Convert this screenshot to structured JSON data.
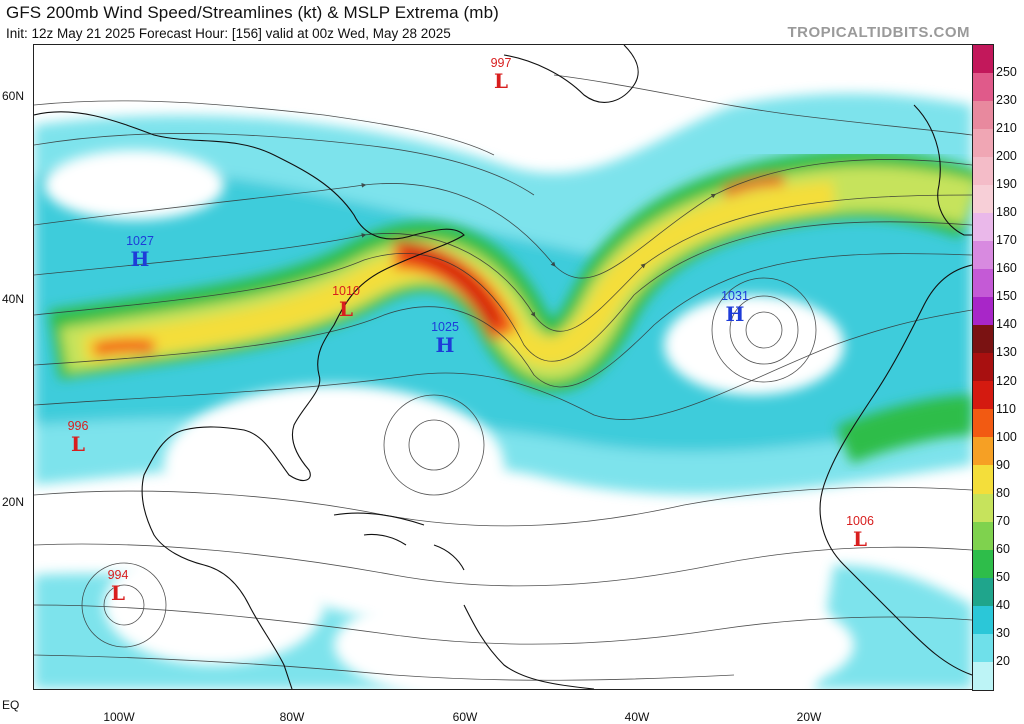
{
  "header": {
    "title": "GFS 200mb Wind Speed/Streamlines (kt) & MSLP Extrema (mb)",
    "subtitle": "Init: 12z May 21 2025   Forecast Hour: [156]   valid at 00z Wed, May 28 2025",
    "watermark": "TROPICALTIDBITS.COM"
  },
  "axes": {
    "lat_labels": [
      {
        "text": "60N"
      },
      {
        "text": "40N"
      },
      {
        "text": "20N"
      },
      {
        "text": "EQ"
      }
    ],
    "lon_labels": [
      {
        "text": "100W"
      },
      {
        "text": "80W"
      },
      {
        "text": "60W"
      },
      {
        "text": "40W"
      },
      {
        "text": "20W"
      }
    ]
  },
  "colorbar": {
    "labels": [
      "250",
      "230",
      "210",
      "200",
      "190",
      "180",
      "170",
      "160",
      "150",
      "140",
      "130",
      "120",
      "110",
      "100",
      "90",
      "80",
      "70",
      "60",
      "50",
      "40",
      "30",
      "20"
    ],
    "colors": [
      "#c2185b",
      "#e05a8a",
      "#e8899e",
      "#f0a6b4",
      "#f4bcc8",
      "#f7cfd7",
      "#eab8ea",
      "#d88ae0",
      "#c45ad6",
      "#a826c8",
      "#7a1212",
      "#a81010",
      "#d41a10",
      "#f25a12",
      "#f6a024",
      "#f4de3a",
      "#c6e35c",
      "#7fd24e",
      "#2ebd4a",
      "#1fa58c",
      "#2bc7d8",
      "#6fe0ea",
      "#bdf4f6"
    ]
  },
  "pressure_systems": [
    {
      "type": "low",
      "value": "997",
      "symbol": "L"
    },
    {
      "type": "high",
      "value": "1027",
      "symbol": "H"
    },
    {
      "type": "low",
      "value": "1010",
      "symbol": "L"
    },
    {
      "type": "high",
      "value": "1025",
      "symbol": "H"
    },
    {
      "type": "high",
      "value": "1031",
      "symbol": "H"
    },
    {
      "type": "low",
      "value": "996",
      "symbol": "L"
    },
    {
      "type": "low",
      "value": "1006",
      "symbol": "L"
    },
    {
      "type": "low",
      "value": "994",
      "symbol": "L"
    }
  ]
}
